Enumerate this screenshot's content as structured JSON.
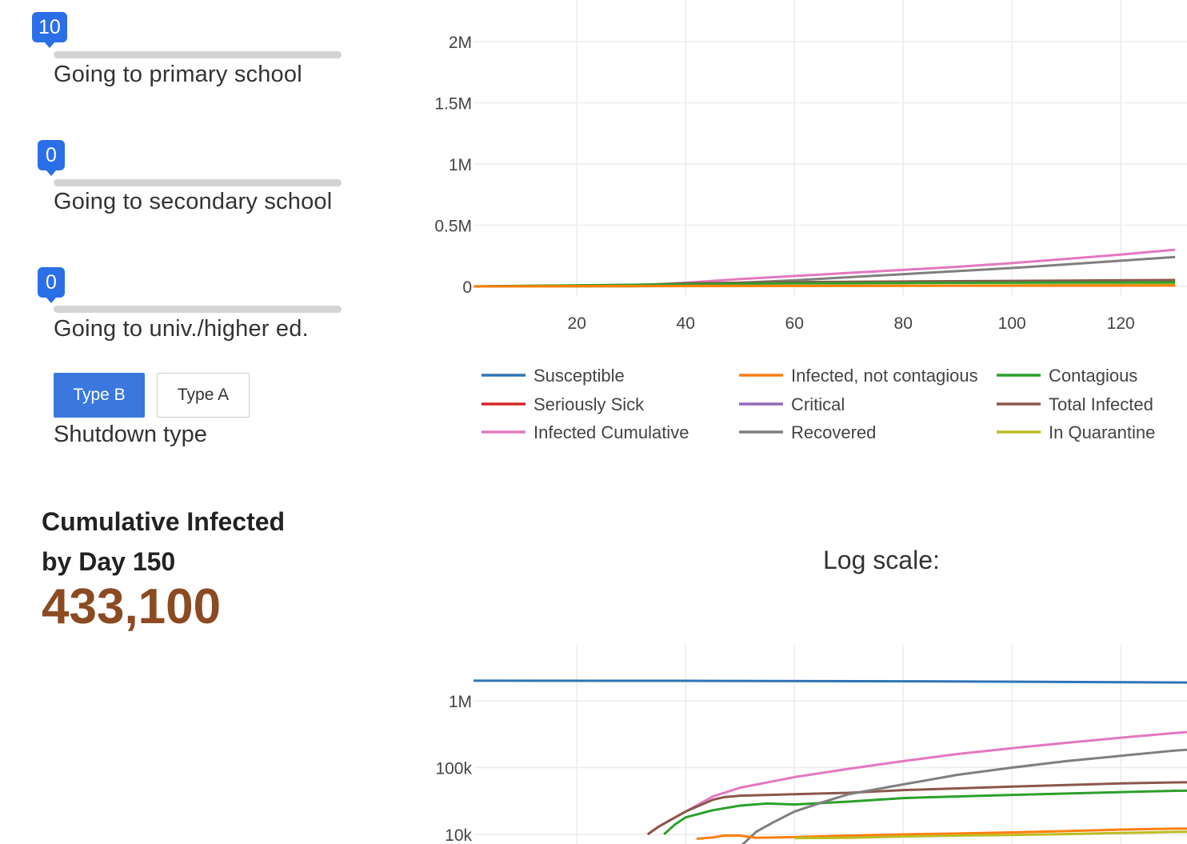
{
  "controls": {
    "sliders": [
      {
        "value": "10",
        "label": "Going to primary school"
      },
      {
        "value": "0",
        "label": "Going to secondary school"
      },
      {
        "value": "0",
        "label": "Going to univ./higher ed."
      }
    ],
    "shutdown": {
      "label": "Shutdown type",
      "buttons": [
        "Type B",
        "Type A"
      ],
      "selected": "Type B"
    }
  },
  "summary": {
    "title_line1": "Cumulative Infected",
    "title_line2": "by Day 150",
    "value": "433,100"
  },
  "log_title": "Log scale:",
  "colors": {
    "accent": "#2b6fe8",
    "stat": "#8b4a22"
  },
  "chart_data": [
    {
      "type": "line",
      "title": "",
      "xlabel": "",
      "ylabel": "",
      "xlim": [
        1,
        150
      ],
      "ylim": [
        -0.05,
        2.1
      ],
      "y_unit": "millions",
      "x_ticks": [
        "20",
        "40",
        "60",
        "80",
        "100",
        "120"
      ],
      "x_tick_values": [
        20,
        40,
        60,
        80,
        100,
        120
      ],
      "y_ticks": [
        "0",
        "0.5M",
        "1M",
        "1.5M",
        "2M"
      ],
      "y_tick_values": [
        0,
        0.5,
        1,
        1.5,
        2
      ],
      "legend": [
        {
          "name": "Susceptible",
          "color": "#2f74b5"
        },
        {
          "name": "Infected, not contagious",
          "color": "#ff7f0e"
        },
        {
          "name": "Contagious",
          "color": "#2ca02c"
        },
        {
          "name": "Seriously Sick",
          "color": "#d62728"
        },
        {
          "name": "Critical",
          "color": "#9467bd"
        },
        {
          "name": "Total Infected",
          "color": "#8c564b"
        },
        {
          "name": "Infected Cumulative",
          "color": "#e377c2"
        },
        {
          "name": "Recovered",
          "color": "#7f7f7f"
        },
        {
          "name": "In Quarantine",
          "color": "#bcbd22"
        }
      ],
      "series": [
        {
          "name": "Infected Cumulative",
          "color": "#e377c2",
          "x": [
            1,
            20,
            30,
            40,
            50,
            60,
            70,
            80,
            90,
            100,
            110,
            120,
            130
          ],
          "values": [
            0,
            0.001,
            0.005,
            0.03,
            0.06,
            0.085,
            0.11,
            0.135,
            0.16,
            0.19,
            0.225,
            0.26,
            0.3
          ]
        },
        {
          "name": "Recovered",
          "color": "#7f7f7f",
          "x": [
            1,
            30,
            40,
            50,
            60,
            70,
            80,
            90,
            100,
            110,
            120,
            130
          ],
          "values": [
            0,
            0.002,
            0.01,
            0.03,
            0.05,
            0.075,
            0.1,
            0.125,
            0.15,
            0.18,
            0.21,
            0.24
          ]
        },
        {
          "name": "Total Infected",
          "color": "#8c564b",
          "x": [
            1,
            30,
            40,
            50,
            60,
            80,
            100,
            120,
            130
          ],
          "values": [
            0,
            0.01,
            0.025,
            0.03,
            0.035,
            0.04,
            0.045,
            0.05,
            0.052
          ]
        },
        {
          "name": "Contagious",
          "color": "#2ca02c",
          "x": [
            1,
            40,
            60,
            80,
            100,
            120,
            130
          ],
          "values": [
            0,
            0.018,
            0.025,
            0.028,
            0.03,
            0.032,
            0.033
          ]
        },
        {
          "name": "In Quarantine",
          "color": "#bcbd22",
          "x": [
            1,
            60,
            80,
            100,
            120,
            130
          ],
          "values": [
            0,
            0.003,
            0.005,
            0.008,
            0.012,
            0.013
          ]
        },
        {
          "name": "Infected, not contagious",
          "color": "#ff7f0e",
          "x": [
            1,
            60,
            100,
            130
          ],
          "values": [
            0,
            0.005,
            0.006,
            0.007
          ]
        }
      ]
    },
    {
      "type": "line",
      "title": "Log scale:",
      "scale": "log",
      "xlim": [
        1,
        150
      ],
      "ylim": [
        10000,
        3000000
      ],
      "y_ticks": [
        "10k",
        "100k",
        "1M"
      ],
      "y_tick_values": [
        10000,
        100000,
        1000000
      ],
      "series": [
        {
          "name": "Susceptible",
          "color": "#2f74b5",
          "x": [
            1,
            40,
            80,
            120,
            150
          ],
          "values": [
            2000000,
            1990000,
            1960000,
            1900000,
            1850000
          ]
        },
        {
          "name": "Infected Cumulative",
          "color": "#e377c2",
          "x": [
            33,
            35,
            40,
            45,
            50,
            60,
            70,
            80,
            90,
            100,
            110,
            120,
            130,
            150
          ],
          "values": [
            10000,
            13000,
            22000,
            37000,
            50000,
            72000,
            96000,
            125000,
            160000,
            195000,
            235000,
            280000,
            330000,
            433100
          ]
        },
        {
          "name": "Total Infected",
          "color": "#8c564b",
          "x": [
            33,
            35,
            40,
            45,
            47,
            50,
            60,
            70,
            80,
            100,
            120,
            130,
            150
          ],
          "values": [
            10000,
            13000,
            22000,
            33000,
            36000,
            38000,
            40000,
            42000,
            46000,
            52000,
            58000,
            60000,
            62000
          ]
        },
        {
          "name": "Contagious",
          "color": "#2ca02c",
          "x": [
            36,
            38,
            40,
            45,
            50,
            55,
            60,
            70,
            80,
            100,
            120,
            130,
            150
          ],
          "values": [
            10000,
            14000,
            18000,
            23000,
            27000,
            29000,
            28000,
            31000,
            35000,
            39000,
            43000,
            45000,
            46000
          ]
        },
        {
          "name": "Recovered",
          "color": "#7f7f7f",
          "x": [
            50,
            53,
            56,
            60,
            65,
            70,
            80,
            90,
            100,
            110,
            120,
            130,
            150
          ],
          "values": [
            6500,
            11000,
            15000,
            22000,
            30000,
            40000,
            56000,
            78000,
            100000,
            125000,
            150000,
            180000,
            230000
          ]
        },
        {
          "name": "Infected, not contagious",
          "color": "#ff7f0e",
          "x": [
            42,
            45,
            47,
            50,
            53,
            56,
            60,
            70,
            80,
            90,
            100,
            110,
            120,
            130,
            150
          ],
          "values": [
            8600,
            9000,
            9600,
            9600,
            8900,
            9000,
            9100,
            9600,
            10000,
            10300,
            10700,
            11200,
            11800,
            12200,
            12500
          ]
        },
        {
          "name": "In Quarantine",
          "color": "#bcbd22",
          "x": [
            60,
            70,
            80,
            90,
            100,
            110,
            120,
            130,
            150
          ],
          "values": [
            8800,
            8900,
            9300,
            9600,
            9800,
            10100,
            10500,
            10900,
            11200
          ]
        }
      ]
    }
  ]
}
